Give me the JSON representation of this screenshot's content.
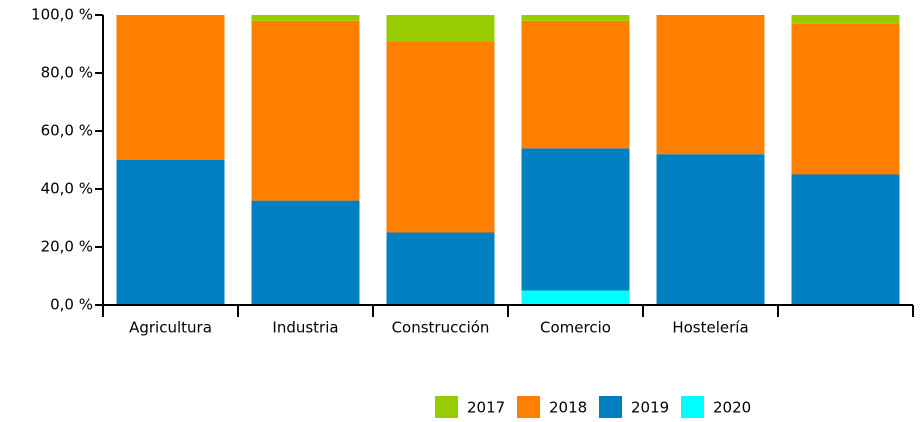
{
  "chart_data": {
    "type": "stacked_bar",
    "categories": [
      "Agricultura",
      "Industria",
      "Construcción",
      "Comercio",
      "Hostelería",
      null
    ],
    "series": [
      {
        "name": "2017",
        "color": "#99cc00",
        "values": [
          0,
          2,
          9,
          2,
          0,
          3
        ]
      },
      {
        "name": "2018",
        "color": "#ff8000",
        "values": [
          50,
          62,
          66,
          44,
          48,
          52
        ]
      },
      {
        "name": "2019",
        "color": "#0080c0",
        "values": [
          50,
          36,
          25,
          49,
          52,
          45
        ]
      },
      {
        "name": "2020",
        "color": "#00ffff",
        "values": [
          0,
          0,
          0,
          5,
          0,
          0
        ]
      }
    ],
    "ylim": [
      0,
      100
    ],
    "yticks": [
      {
        "value": 0,
        "label": "0,0 %"
      },
      {
        "value": 20,
        "label": "20,0 %"
      },
      {
        "value": 40,
        "label": "40,0 %"
      },
      {
        "value": 60,
        "label": "60,0 %"
      },
      {
        "value": 80,
        "label": "80,0 %"
      },
      {
        "value": 100,
        "label": "100,0 %"
      }
    ],
    "legend": "bottom"
  }
}
